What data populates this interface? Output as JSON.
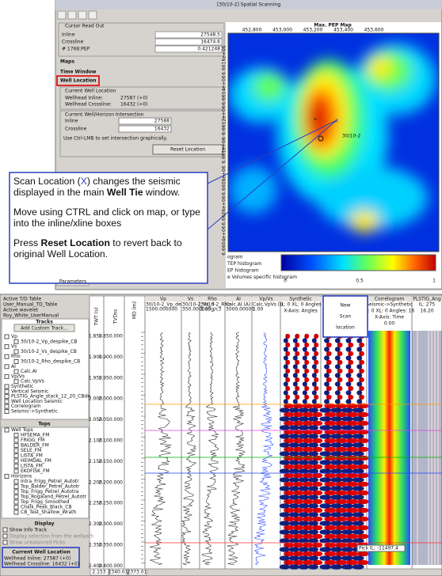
{
  "top_window": {
    "title": "[30/10-2] Spatial Scanning",
    "cursor_readout": {
      "title": "Cursor Read Out",
      "rows": [
        [
          "Inline",
          "27548.5"
        ],
        [
          "Crossline",
          "16474.6"
        ],
        [
          "# 1768:PEP",
          "0.421248"
        ]
      ]
    },
    "sections": [
      "Maps",
      "Time Window",
      "Well Location"
    ],
    "current_well": {
      "title": "Current Well Location",
      "rows": [
        [
          "Wellhead Inline:",
          "27587 (+0)"
        ],
        [
          "Wellhead Crossline:",
          "16432 (+0)"
        ]
      ]
    },
    "intersection": {
      "title": "Current Well/Horizon Intersection",
      "rows": [
        [
          "Inline",
          "27588"
        ],
        [
          "Crossline",
          "16432"
        ]
      ],
      "hint": "Use Ctrl-LMB to set intersection graphically.",
      "button": "Reset Location"
    },
    "map": {
      "title": "Max. PEP Map",
      "x_labels": [
        "452,800",
        "453,000",
        "453,200",
        "453,400",
        "453,600"
      ],
      "y_labels": [
        "6.6616e+06",
        "6.6614e+06",
        "6.6612e+06",
        "6.661e+06",
        "6.6608e+06",
        "6.6606e+06",
        "6.6604e+06"
      ],
      "colorbar_labels": [
        "0",
        "0.5",
        "1"
      ],
      "well_label": "30/10-2"
    },
    "histograms": [
      "ogram",
      "TEP histogram",
      "EP histogram",
      "e Volumes specific histogram"
    ],
    "tab": "Parameters"
  },
  "callout": {
    "p1": [
      "Scan Location (",
      "X",
      ") changes the seismic displayed in the main ",
      "Well Tie",
      " window."
    ],
    "p2": "Move using CTRL and click on map, or type into the inline/xline boxes",
    "p3": [
      "Press ",
      "Reset Location",
      " to revert back to original Well Location."
    ]
  },
  "new_scan_callout": [
    "New",
    "Scan",
    "location"
  ],
  "bottom_window": {
    "info": [
      "Active T/D Table",
      "User_Manual_TD_Table",
      "Active wavelet",
      "Roy_White_UserManual"
    ],
    "tracks_heading": "Tracks",
    "add_button": "Add Custom Track...",
    "tree": [
      "Vp",
      "30/10-2_Vp_despike_CB",
      "Vs",
      "30/10-2_Vs_despike_CB",
      "Rho",
      "30/10-2_Rho_despike_CB",
      "AI",
      "Calc.AI",
      "Vp/Vs",
      "Calc.VpVs",
      "Synthetic",
      "Vertical Seismic",
      "PLSTIG_Angle_stack_12_20_CBde",
      "Well Location Seismic",
      "Correlogram",
      "Seismic->Synthetic"
    ],
    "tops_heading": "Tops",
    "tops": [
      "Well Tops",
      "HFSEMA_FM",
      "FRIGG_FM",
      "BALDER_FM",
      "SELE_FM",
      "LISTA_FM",
      "HEIMDAL_FM",
      "LISTA_FM",
      "EKOFISK_FM",
      "Horizons",
      "Intra_Frigg_Petrel_Autotr",
      "Top_Balder_Petrel_Autotr",
      "Top_Frigg_Petrel_Autotra",
      "Top_Rogaland_Petrel_Autotr",
      "Top_Frigg_Smoothed",
      "Chalk_Peak_Black_CB",
      "CB_Test_Shallow_Wrath"
    ],
    "display_heading": "Display",
    "display": [
      "Show Info Track",
      "Display selection from the wellpath",
      "Show unbalanced Picks"
    ],
    "current_well": {
      "title": "Current Well Location",
      "rows": [
        "Wellhead Inline:   27587 (+0)",
        "Wellhead Crossline: 16432 (+0)"
      ]
    },
    "axis_headers": [
      "TWT (s)",
      "TVDss",
      "MD (m)"
    ],
    "twt_labels": [
      "1.850",
      "1.900",
      "1.950",
      "2.000",
      "2.050",
      "2.100",
      "2.150",
      "2.200",
      "2.250",
      "2.300",
      "2.350",
      "2.400"
    ],
    "tvd_labels": [
      "1.850.000",
      "1.900.000",
      "1.950.000",
      "2.000.000",
      "2.050.000",
      "2.100.000",
      "2.150.000",
      "2.200.000",
      "2.250.000",
      "2.300.000",
      "2.350.000",
      "2.400.000"
    ],
    "tracks": [
      {
        "name": "Vp",
        "lines": [
          "30/10-2_Vp_de",
          "1500.000000"
        ]
      },
      {
        "name": "Vs",
        "lines": [
          "30/10-2_Vs_d",
          "350.000000"
        ]
      },
      {
        "name": "Rho",
        "lines": [
          "30/10-2_Rho",
          "1.45g/c3"
        ]
      },
      {
        "name": "AI",
        "lines": [
          "Calc.AI (A)",
          "3000.00000"
        ]
      },
      {
        "name": "Vp/Vs",
        "lines": [
          "Calc.VpVs (U",
          "1.00"
        ]
      },
      {
        "name": "Synthetic",
        "lines": [
          "IL: 0 XL: 0 Angles",
          "X-Axis: Angles"
        ]
      },
      {
        "name": "Seismic",
        "lines": []
      },
      {
        "name": "Correlogram",
        "lines": [
          "Seismic->Synthetic",
          "IL: 0 XL: 0 Angles: 16",
          "X-Axis: Time",
          "0.00"
        ]
      },
      {
        "name": "PLSTIG_Ang",
        "lines": [
          "IL: 275",
          "16.20"
        ]
      }
    ],
    "status": [
      "2.153",
      "2340.01",
      "2373.01"
    ],
    "pick_label": "Pick IL: -11497.4"
  }
}
